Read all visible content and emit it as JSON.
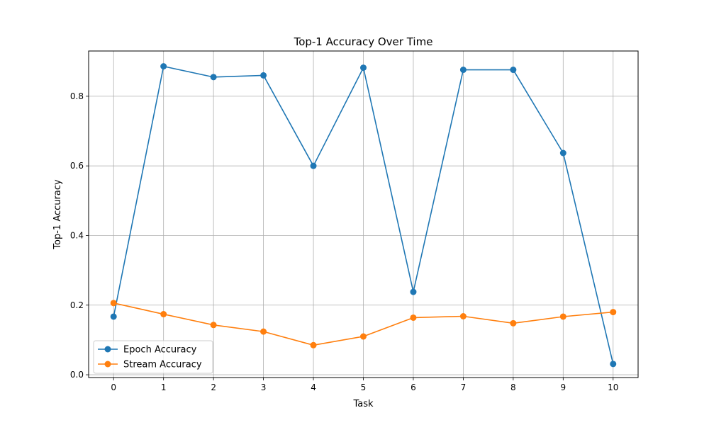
{
  "chart_data": {
    "type": "line",
    "title": "Top-1 Accuracy Over Time",
    "xlabel": "Task",
    "ylabel": "Top-1 Accuracy",
    "x": [
      0,
      1,
      2,
      3,
      4,
      5,
      6,
      7,
      8,
      9,
      10
    ],
    "xlim": [
      -0.5,
      10.5
    ],
    "ylim": [
      -0.008,
      0.93
    ],
    "xticks": [
      "0",
      "1",
      "2",
      "3",
      "4",
      "5",
      "6",
      "7",
      "8",
      "9",
      "10"
    ],
    "yticks": [
      {
        "value": 0.0,
        "label": "0.0"
      },
      {
        "value": 0.2,
        "label": "0.2"
      },
      {
        "value": 0.4,
        "label": "0.4"
      },
      {
        "value": 0.6,
        "label": "0.6"
      },
      {
        "value": 0.8,
        "label": "0.8"
      }
    ],
    "grid": true,
    "legend_position": "lower-left",
    "series": [
      {
        "name": "Epoch Accuracy",
        "color": "#1f77b4",
        "marker": "circle",
        "values": [
          0.167,
          0.886,
          0.855,
          0.86,
          0.6,
          0.882,
          0.238,
          0.876,
          0.876,
          0.637,
          0.031
        ]
      },
      {
        "name": "Stream Accuracy",
        "color": "#ff7f0e",
        "marker": "circle",
        "values": [
          0.206,
          0.174,
          0.143,
          0.124,
          0.085,
          0.11,
          0.164,
          0.168,
          0.148,
          0.167,
          0.18
        ]
      }
    ]
  }
}
